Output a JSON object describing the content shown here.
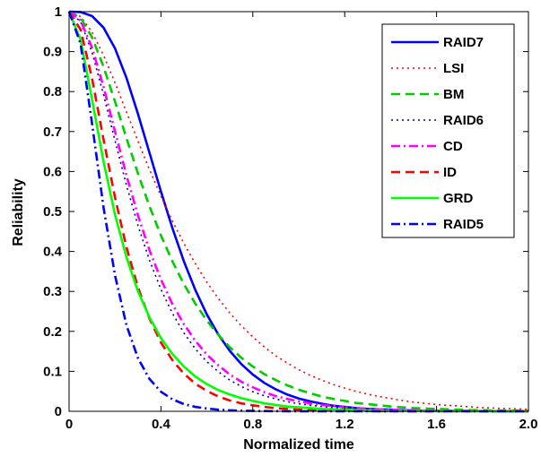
{
  "chart_data": {
    "type": "line",
    "title": "",
    "xlabel": "Normalized time",
    "ylabel": "Reliability",
    "xlim": [
      0,
      2
    ],
    "ylim": [
      0,
      1
    ],
    "x_ticks": [
      "0",
      "0.4",
      "0.8",
      "1.2",
      "1.6",
      "2.0"
    ],
    "y_ticks": [
      "0",
      "0.1",
      "0.2",
      "0.3",
      "0.4",
      "0.5",
      "0.6",
      "0.7",
      "0.8",
      "0.9",
      "1"
    ],
    "grid": false,
    "legend_position": "top-right",
    "x": [
      0,
      0.05,
      0.1,
      0.15,
      0.2,
      0.25,
      0.3,
      0.35,
      0.4,
      0.45,
      0.5,
      0.55,
      0.6,
      0.65,
      0.7,
      0.75,
      0.8,
      0.85,
      0.9,
      0.95,
      1.0,
      1.05,
      1.1,
      1.15,
      1.2,
      1.25,
      1.3,
      1.35,
      1.4,
      1.45,
      1.5,
      1.55,
      1.6,
      1.65,
      1.7,
      1.75,
      1.8,
      1.85,
      1.9,
      1.95,
      2.0
    ],
    "series": [
      {
        "name": "RAID7",
        "color": "#0000ff",
        "style": "solid",
        "values": [
          1,
          0.999,
          0.989,
          0.96,
          0.908,
          0.834,
          0.744,
          0.647,
          0.55,
          0.458,
          0.375,
          0.303,
          0.242,
          0.192,
          0.151,
          0.118,
          0.092,
          0.071,
          0.055,
          0.042,
          0.032,
          0.025,
          0.019,
          0.014,
          0.011,
          0.008,
          0.006,
          0.005,
          0.004,
          0.003,
          0.002,
          0.0015,
          0.001,
          0.001,
          0.0008,
          0.0006,
          0.0004,
          0.0003,
          0.0002,
          0.0002,
          0.0001
        ]
      },
      {
        "name": "LSI",
        "color": "#ff0000",
        "style": "dotted",
        "values": [
          1,
          0.988,
          0.949,
          0.891,
          0.822,
          0.749,
          0.676,
          0.605,
          0.538,
          0.476,
          0.42,
          0.369,
          0.323,
          0.282,
          0.246,
          0.214,
          0.186,
          0.161,
          0.139,
          0.121,
          0.104,
          0.09,
          0.078,
          0.067,
          0.058,
          0.05,
          0.043,
          0.037,
          0.032,
          0.027,
          0.023,
          0.02,
          0.017,
          0.015,
          0.013,
          0.011,
          0.009,
          0.008,
          0.007,
          0.006,
          0.005
        ]
      },
      {
        "name": "BM",
        "color": "#00cc00",
        "style": "dashed",
        "values": [
          1,
          0.985,
          0.936,
          0.862,
          0.775,
          0.683,
          0.595,
          0.513,
          0.44,
          0.375,
          0.318,
          0.269,
          0.227,
          0.191,
          0.16,
          0.134,
          0.112,
          0.093,
          0.078,
          0.065,
          0.054,
          0.045,
          0.037,
          0.031,
          0.026,
          0.021,
          0.018,
          0.015,
          0.012,
          0.01,
          0.008,
          0.007,
          0.006,
          0.005,
          0.004,
          0.003,
          0.003,
          0.002,
          0.002,
          0.002,
          0.001
        ]
      },
      {
        "name": "RAID6",
        "color": "#0000aa",
        "style": "dotted",
        "values": [
          1,
          0.975,
          0.898,
          0.792,
          0.677,
          0.565,
          0.465,
          0.378,
          0.305,
          0.245,
          0.196,
          0.156,
          0.124,
          0.099,
          0.078,
          0.062,
          0.049,
          0.039,
          0.031,
          0.024,
          0.019,
          0.015,
          0.012,
          0.009,
          0.007,
          0.006,
          0.005,
          0.004,
          0.003,
          0.002,
          0.002,
          0.001,
          0.001,
          0.001,
          0.001,
          0.0005,
          0.0004,
          0.0003,
          0.0003,
          0.0002,
          0.0002
        ]
      },
      {
        "name": "CD",
        "color": "#ff00ff",
        "style": "dashdot",
        "values": [
          1,
          0.978,
          0.91,
          0.812,
          0.7,
          0.59,
          0.49,
          0.403,
          0.33,
          0.268,
          0.218,
          0.176,
          0.142,
          0.115,
          0.092,
          0.074,
          0.06,
          0.048,
          0.038,
          0.031,
          0.025,
          0.02,
          0.016,
          0.013,
          0.01,
          0.008,
          0.006,
          0.005,
          0.004,
          0.003,
          0.003,
          0.002,
          0.002,
          0.001,
          0.001,
          0.001,
          0.0007,
          0.0006,
          0.0005,
          0.0004,
          0.0003
        ]
      },
      {
        "name": "ID",
        "color": "#ff0000",
        "style": "dashed",
        "values": [
          1,
          0.955,
          0.833,
          0.68,
          0.535,
          0.41,
          0.31,
          0.232,
          0.172,
          0.128,
          0.094,
          0.069,
          0.051,
          0.037,
          0.027,
          0.02,
          0.015,
          0.011,
          0.008,
          0.006,
          0.004,
          0.003,
          0.002,
          0.002,
          0.001,
          0.001,
          0.0007,
          0.0005,
          0.0004,
          0.0003,
          0.0002,
          0.0001,
          0.0001,
          0.0001,
          0,
          0,
          0,
          0,
          0,
          0,
          0
        ]
      },
      {
        "name": "GRD",
        "color": "#00ff00",
        "style": "solid",
        "values": [
          1,
          0.93,
          0.78,
          0.625,
          0.492,
          0.385,
          0.3,
          0.235,
          0.183,
          0.143,
          0.112,
          0.087,
          0.068,
          0.053,
          0.042,
          0.033,
          0.026,
          0.02,
          0.016,
          0.012,
          0.01,
          0.008,
          0.006,
          0.005,
          0.004,
          0.003,
          0.002,
          0.002,
          0.001,
          0.001,
          0.001,
          0.001,
          0.0005,
          0.0004,
          0.0003,
          0.0003,
          0.0002,
          0.0002,
          0.0001,
          0.0001,
          0.0001
        ]
      },
      {
        "name": "RAID5",
        "color": "#0000ff",
        "style": "dashdot",
        "values": [
          1,
          0.92,
          0.72,
          0.51,
          0.34,
          0.215,
          0.133,
          0.081,
          0.049,
          0.03,
          0.018,
          0.011,
          0.007,
          0.004,
          0.0025,
          0.0015,
          0.0009,
          0.0006,
          0.0004,
          0.0002,
          0.0001,
          0.0001,
          0,
          0,
          0,
          0,
          0,
          0,
          0,
          0,
          0,
          0,
          0,
          0,
          0,
          0,
          0,
          0,
          0,
          0,
          0
        ]
      }
    ]
  }
}
